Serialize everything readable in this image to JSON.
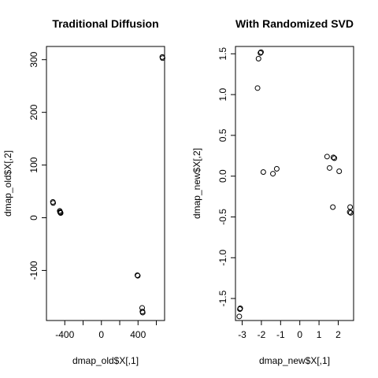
{
  "chart_data": [
    {
      "type": "scatter",
      "title": "Traditional Diffusion",
      "xlabel": "dmap_old$X[,1]",
      "ylabel": "dmap_old$X[,2]",
      "xlim": [
        -600,
        690
      ],
      "ylim": [
        -195,
        325
      ],
      "xticks": [
        -400,
        -200,
        0,
        200,
        400,
        600
      ],
      "xtick_labels": [
        "-400",
        "",
        "0",
        "",
        "400",
        ""
      ],
      "yticks": [
        -100,
        0,
        100,
        200,
        300
      ],
      "ytick_labels": [
        "-100",
        "0",
        "100",
        "200",
        "300"
      ],
      "marker": "open-circle",
      "grid": false,
      "x": [
        -530,
        -527,
        -455,
        -452,
        -448,
        -445,
        393,
        397,
        445,
        448,
        451,
        665,
        668
      ],
      "y": [
        30,
        28,
        13,
        11,
        10,
        9,
        -109,
        -110,
        -171,
        -178,
        -180,
        305,
        303
      ]
    },
    {
      "type": "scatter",
      "title": "With Randomized SVD",
      "xlabel": "dmap_new$X[,1]",
      "ylabel": "dmap_new$X[,2]",
      "xlim": [
        -3.35,
        2.8
      ],
      "ylim": [
        -1.77,
        1.59
      ],
      "xticks": [
        -3,
        -2,
        -1,
        0,
        1,
        2
      ],
      "xtick_labels": [
        "-3",
        "-2",
        "-1",
        "0",
        "1",
        "2"
      ],
      "yticks": [
        -1.5,
        -1.0,
        -0.5,
        0.0,
        0.5,
        1.0,
        1.5
      ],
      "ytick_labels": [
        "-1.5",
        "-1.0",
        "-0.5",
        "0.0",
        "0.5",
        "1.0",
        "1.5"
      ],
      "marker": "open-circle",
      "grid": false,
      "x": [
        -3.15,
        -3.1,
        -3.12,
        -2.2,
        -2.05,
        -2.02,
        -2.15,
        -1.9,
        -1.4,
        -1.2,
        1.42,
        1.55,
        1.75,
        1.8,
        1.72,
        2.05,
        2.62,
        2.6,
        2.65
      ],
      "y": [
        -1.72,
        -1.62,
        -1.63,
        1.08,
        1.51,
        1.52,
        1.44,
        0.05,
        0.03,
        0.09,
        0.24,
        0.1,
        0.23,
        0.22,
        -0.38,
        0.06,
        -0.38,
        -0.44,
        -0.45
      ]
    }
  ]
}
